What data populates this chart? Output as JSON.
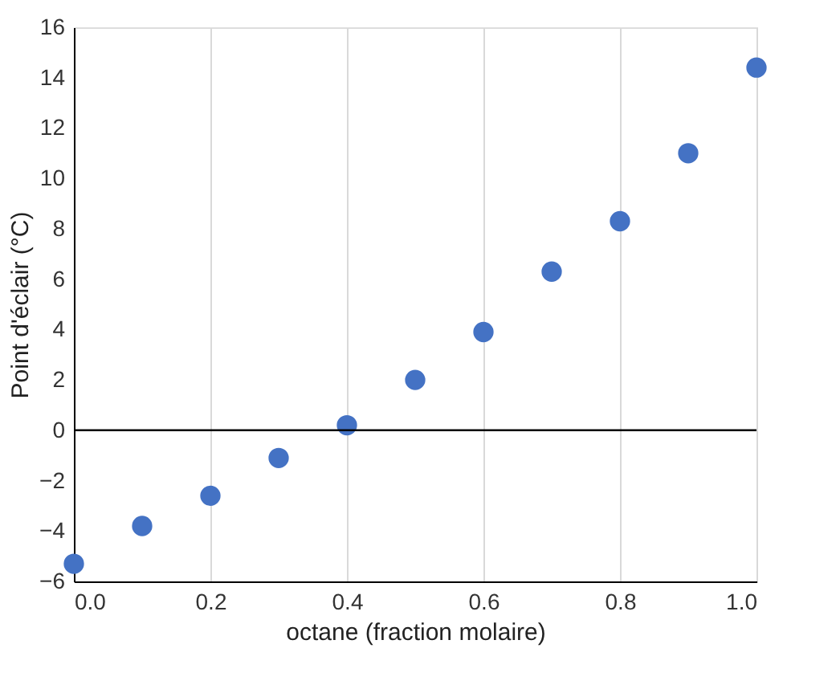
{
  "chart_data": {
    "type": "scatter",
    "xlabel": "octane (fraction molaire)",
    "ylabel": "Point d'éclair (°C)",
    "x": [
      0.0,
      0.1,
      0.2,
      0.3,
      0.4,
      0.5,
      0.6,
      0.7,
      0.8,
      0.9,
      1.0
    ],
    "series": [
      {
        "color": "#4472c4",
        "values": [
          -5.3,
          -3.8,
          -2.6,
          -1.1,
          0.2,
          2.0,
          3.9,
          6.3,
          8.3,
          11.0,
          14.4
        ]
      }
    ],
    "xlim": [
      0.0,
      1.0
    ],
    "xticks": [
      {
        "value": 0,
        "label": "0.0"
      },
      0.2,
      0.4,
      0.6,
      0.8,
      {
        "value": 1,
        "label": "1.0"
      }
    ],
    "ylim": [
      -6,
      16
    ],
    "yticks": [
      -6,
      -4,
      -2,
      0,
      2,
      4,
      6,
      8,
      10,
      12,
      14,
      16
    ],
    "grid": "x",
    "marker": "circle",
    "ref_lines": [
      {
        "axis": "y",
        "value": 0,
        "color": "#000000"
      }
    ]
  }
}
